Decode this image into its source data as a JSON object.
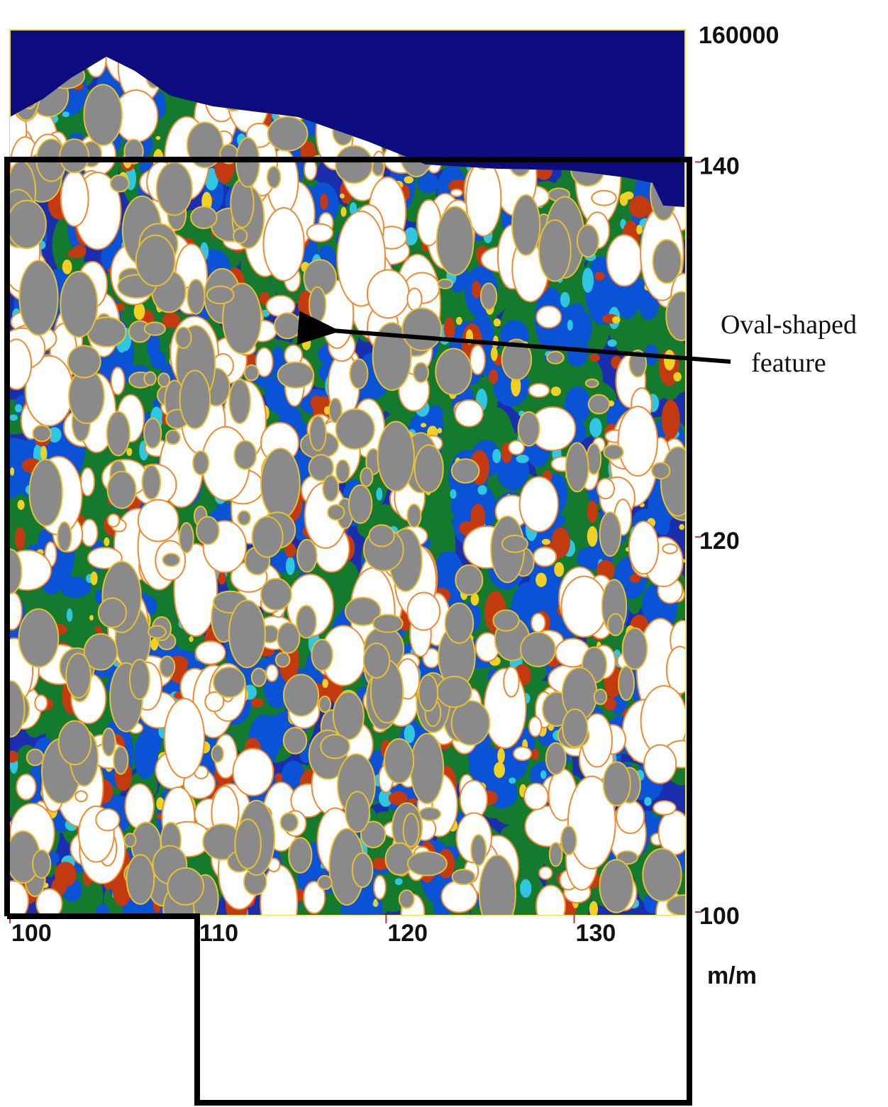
{
  "chart_data": {
    "type": "map",
    "xlim": [
      100,
      135.9
    ],
    "ylim": [
      100,
      147.2
    ],
    "xticks": [
      100,
      110,
      120,
      130
    ],
    "yticks": [
      100,
      120,
      140
    ],
    "axis_unit": "m/m",
    "corner_label": "160000",
    "annotation": {
      "lines": [
        "Oval-shaped",
        "feature"
      ],
      "x": 116.6,
      "y": 131.2
    }
  }
}
